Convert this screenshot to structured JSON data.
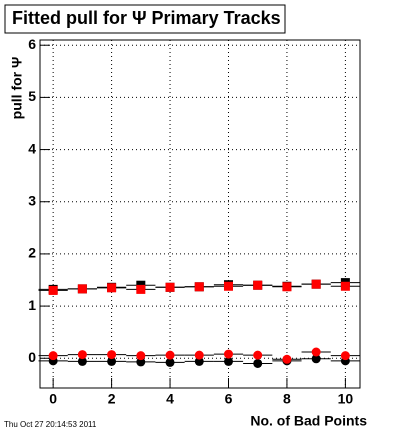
{
  "chart_data": {
    "type": "scatter",
    "title": "Fitted pull for Ψ  Primary Tracks",
    "y_label": "pull for Ψ",
    "x_label": "No. of Bad Points",
    "footer": "Thu Oct 27 20:14:53 2011",
    "xlim": [
      -0.45,
      10.5
    ],
    "ylim": [
      -0.57,
      6.1
    ],
    "xticks": [
      0,
      2,
      4,
      6,
      8,
      10
    ],
    "yticks": [
      0,
      1,
      2,
      3,
      4,
      5,
      6
    ],
    "grid": true,
    "x": [
      0,
      1,
      2,
      3,
      4,
      5,
      6,
      7,
      8,
      9,
      10
    ],
    "xerr": 0.5,
    "series": [
      {
        "marker": "square",
        "color": "#000000",
        "values": [
          1.32,
          1.33,
          1.36,
          1.4,
          1.36,
          1.37,
          1.41,
          1.4,
          1.38,
          1.42,
          1.45
        ]
      },
      {
        "marker": "square",
        "color": "#ff0000",
        "values": [
          1.3,
          1.33,
          1.35,
          1.32,
          1.36,
          1.37,
          1.38,
          1.4,
          1.37,
          1.42,
          1.38
        ]
      },
      {
        "marker": "circle",
        "color": "#000000",
        "values": [
          -0.05,
          -0.06,
          -0.06,
          -0.07,
          -0.08,
          -0.06,
          -0.06,
          -0.1,
          -0.05,
          -0.01,
          -0.05
        ]
      },
      {
        "marker": "circle",
        "color": "#ff0000",
        "values": [
          0.05,
          0.07,
          0.07,
          0.05,
          0.06,
          0.06,
          0.08,
          0.06,
          -0.02,
          0.12,
          0.05
        ]
      }
    ]
  }
}
